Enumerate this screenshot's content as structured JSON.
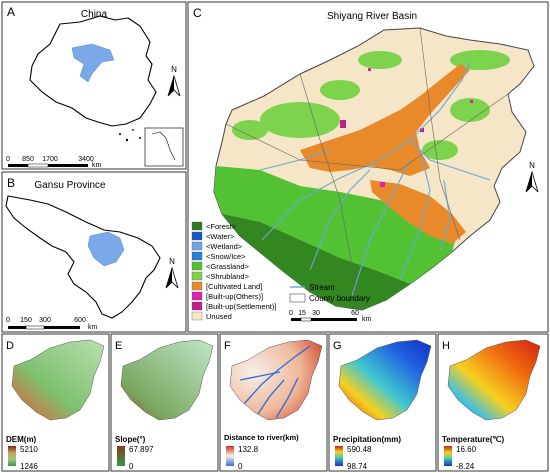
{
  "panels": {
    "A": {
      "letter": "A",
      "title": "China",
      "scale_ticks": [
        "0",
        "850",
        "1700",
        "3400"
      ],
      "scale_unit": "km"
    },
    "B": {
      "letter": "B",
      "title": "Gansu Province",
      "scale_ticks": [
        "0",
        "150",
        "300",
        "600"
      ],
      "scale_unit": "km"
    },
    "C": {
      "letter": "C",
      "title": "Shiyang River Basin",
      "scale_ticks": [
        "0",
        "15",
        "30",
        "60"
      ],
      "scale_unit": "km",
      "legend": [
        {
          "label": "<Forest>",
          "color": "#2e7d1e"
        },
        {
          "label": "<Water>",
          "color": "#1a56c4"
        },
        {
          "label": "<Wetland>",
          "color": "#6ea6e8"
        },
        {
          "label": "<Snow/Ice>",
          "color": "#2f7fd6"
        },
        {
          "label": "<Grassland>",
          "color": "#52c234"
        },
        {
          "label": "<Shrubland>",
          "color": "#7ed34c"
        },
        {
          "label": "[Cultivated Land]",
          "color": "#e8892a"
        },
        {
          "label": "[Built-up(Others)]",
          "color": "#e020b0"
        },
        {
          "label": "[Built-up(Settlement)]",
          "color": "#c0208a"
        },
        {
          "label": "Unused",
          "color": "#f5e6c8"
        }
      ],
      "stream_label": "Stream",
      "stream_color": "#6aa8d8",
      "boundary_label": "County boundary"
    },
    "D": {
      "letter": "D",
      "var_label": "DEM(m)",
      "max": "5210",
      "min": "1246"
    },
    "E": {
      "letter": "E",
      "var_label": "Slope(°)",
      "max": "67.897",
      "min": "0"
    },
    "F": {
      "letter": "F",
      "var_label": "Distance to river(km)",
      "max": "132.8",
      "min": "0"
    },
    "G": {
      "letter": "G",
      "var_label": "Precipitation(mm)",
      "max": "590.48",
      "min": "98.74"
    },
    "H": {
      "letter": "H",
      "var_label": "Temperature(℃)",
      "max": "16.60",
      "min": "-8.24"
    }
  },
  "north_label": "N"
}
